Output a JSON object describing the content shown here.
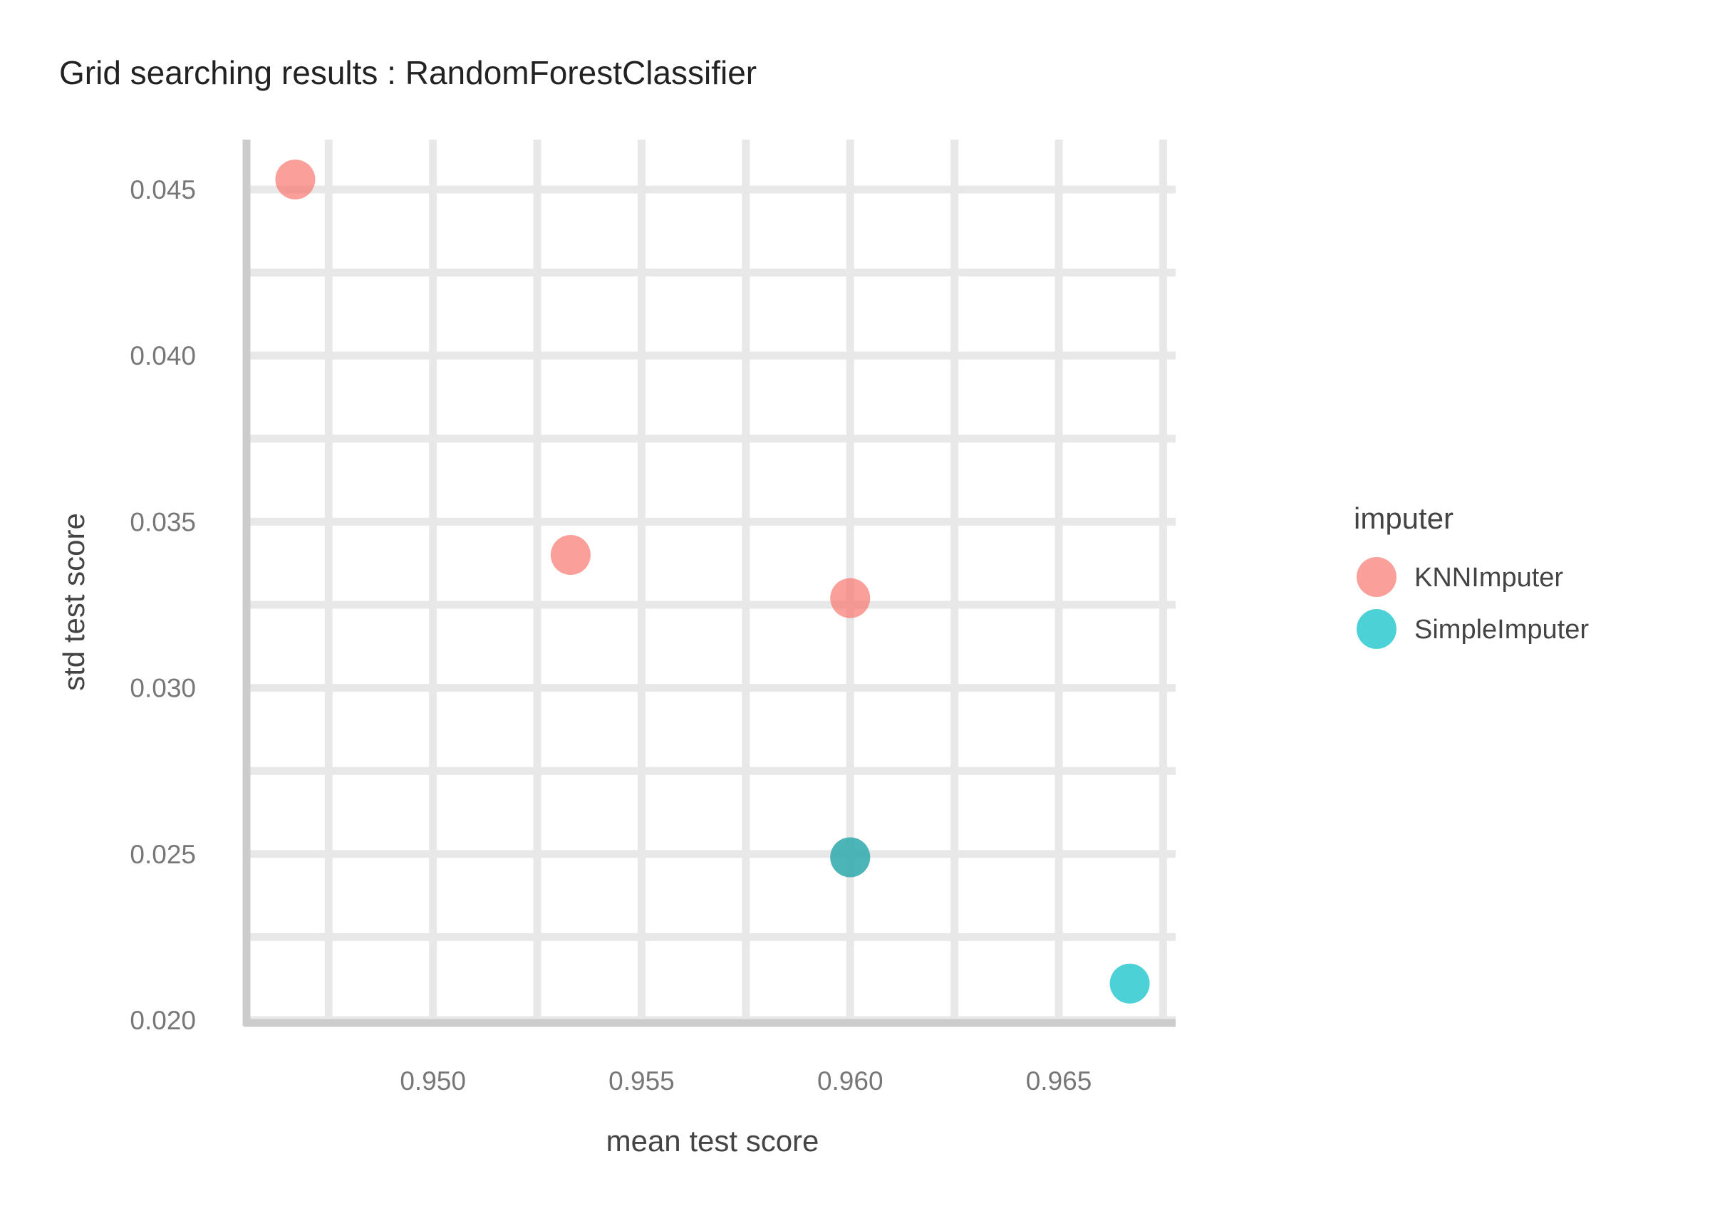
{
  "chart_data": {
    "type": "scatter",
    "title": "Grid searching results :  RandomForestClassifier",
    "xlabel": "mean test score",
    "ylabel": "std test score",
    "xlim": [
      0.9456,
      0.9678
    ],
    "ylim": [
      0.02,
      0.0465
    ],
    "x_ticks": [
      {
        "value": 0.95,
        "label": "0.950"
      },
      {
        "value": 0.955,
        "label": "0.955"
      },
      {
        "value": 0.96,
        "label": "0.960"
      },
      {
        "value": 0.965,
        "label": "0.965"
      }
    ],
    "y_ticks": [
      {
        "value": 0.02,
        "label": "0.020"
      },
      {
        "value": 0.025,
        "label": "0.025"
      },
      {
        "value": 0.03,
        "label": "0.030"
      },
      {
        "value": 0.035,
        "label": "0.035"
      },
      {
        "value": 0.04,
        "label": "0.040"
      },
      {
        "value": 0.045,
        "label": "0.045"
      }
    ],
    "x_minor_grid": [
      0.9475,
      0.9525,
      0.9575,
      0.9625,
      0.9675
    ],
    "y_minor_grid": [
      0.0225,
      0.0275,
      0.0325,
      0.0375,
      0.0425
    ],
    "grid": true,
    "legend": {
      "title": "imputer",
      "placement": "right",
      "entries": [
        {
          "label": "KNNImputer",
          "color": "#F8766D"
        },
        {
          "label": "SimpleImputer",
          "color": "#00BFC4"
        }
      ]
    },
    "series": [
      {
        "name": "KNNImputer",
        "color": "#F8766D",
        "points": [
          {
            "x": 0.9467,
            "y": 0.0453
          },
          {
            "x": 0.9533,
            "y": 0.034
          },
          {
            "x": 0.96,
            "y": 0.0327
          },
          {
            "x": 0.96,
            "y": 0.0249
          }
        ]
      },
      {
        "name": "SimpleImputer",
        "color": "#00BFC4",
        "points": [
          {
            "x": 0.96,
            "y": 0.0249
          },
          {
            "x": 0.9667,
            "y": 0.0211
          }
        ]
      }
    ]
  }
}
